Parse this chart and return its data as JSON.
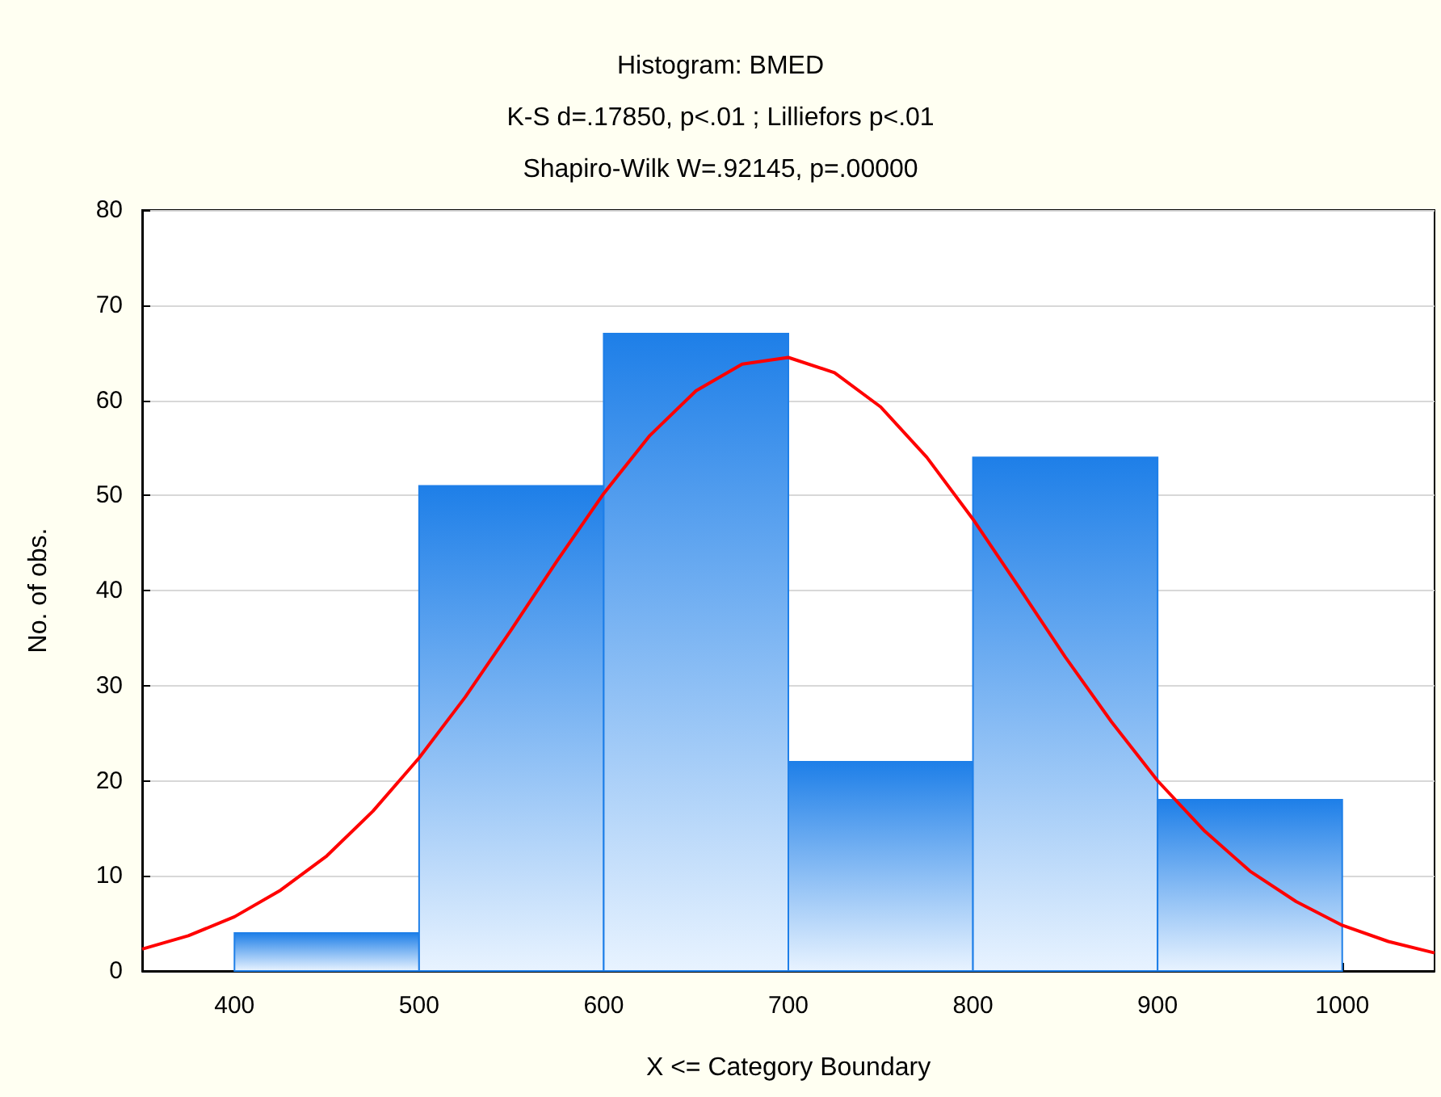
{
  "chart_data": {
    "type": "histogram",
    "title": "Histogram: BMED",
    "subtitle": "K-S d=.17850, p<.01 ; Lilliefors p<.01",
    "annotations": [
      "Shapiro-Wilk W=.92145, p=.00000"
    ],
    "xlabel": "X <= Category Boundary",
    "ylabel": "No. of obs.",
    "bins": [
      400,
      500,
      600,
      700,
      800,
      900,
      1000
    ],
    "series": [
      {
        "color": "#1e7fe8",
        "values": [
          4,
          51,
          67,
          22,
          54,
          18
        ]
      },
      {
        "type": "line",
        "color": "#ff0000",
        "x": [
          350,
          375,
          400,
          425,
          450,
          475,
          500,
          525,
          550,
          575,
          600,
          625,
          650,
          675,
          700,
          725,
          750,
          775,
          800,
          825,
          850,
          875,
          900,
          925,
          950,
          975,
          1000,
          1025,
          1050
        ],
        "values": [
          2.3,
          3.7,
          5.7,
          8.5,
          12.1,
          16.8,
          22.4,
          28.8,
          35.9,
          43.2,
          50.2,
          56.3,
          61.0,
          63.8,
          64.5,
          62.9,
          59.3,
          54.0,
          47.5,
          40.3,
          33.0,
          26.2,
          20.0,
          14.8,
          10.5,
          7.3,
          4.8,
          3.1,
          1.9
        ]
      }
    ],
    "xlim": [
      350,
      1050
    ],
    "xticks": [
      400,
      500,
      600,
      700,
      800,
      900,
      1000
    ],
    "ylim": [
      0,
      80
    ],
    "yticks": [
      0,
      10,
      20,
      30,
      40,
      50,
      60,
      70,
      80
    ],
    "grid": "y",
    "marker": "none",
    "line_style": "solid"
  }
}
